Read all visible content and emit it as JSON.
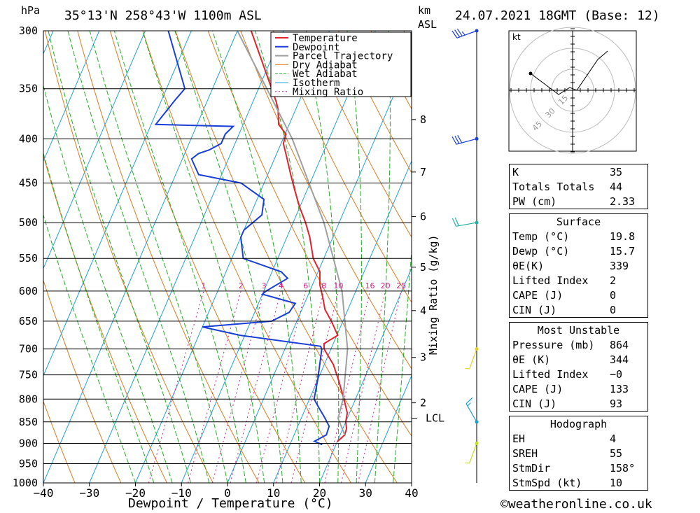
{
  "header": {
    "hpa": "hPa",
    "location": "35°13'N  258°43'W  1100m  ASL",
    "km": "km",
    "asl": "ASL",
    "datetime": "24.07.2021  18GMT  (Base: 12)"
  },
  "chart_data": {
    "type": "line",
    "title": "35°13'N  258°43'W  1100m  ASL",
    "xlabel": "Dewpoint / Temperature (°C)",
    "ylabel": "hPa",
    "xlim": [
      -40,
      40
    ],
    "ylim": [
      1000,
      300
    ],
    "skew_deg_per_log_p": 35,
    "x_ticks": [
      -40,
      -30,
      -20,
      -10,
      0,
      10,
      20,
      30,
      40
    ],
    "x_tick_labels": [
      "−40",
      "−30",
      "−20",
      "−10",
      "0",
      "10",
      "20",
      "30",
      "40"
    ],
    "pressure_levels": [
      300,
      350,
      400,
      450,
      500,
      550,
      600,
      650,
      700,
      750,
      800,
      850,
      900,
      950,
      1000
    ],
    "km_ticks": [
      {
        "km": "8",
        "p": 380
      },
      {
        "km": "7",
        "p": 437
      },
      {
        "km": "6",
        "p": 492
      },
      {
        "km": "5",
        "p": 563
      },
      {
        "km": "4",
        "p": 632
      },
      {
        "km": "3",
        "p": 716
      },
      {
        "km": "2",
        "p": 808
      }
    ],
    "lcl": {
      "label": "LCL",
      "p": 842
    },
    "mixing_ratio_label": "Mixing Ratio (g/kg)",
    "mixing_ratios": [
      1,
      2,
      3,
      4,
      6,
      8,
      10,
      16,
      20,
      25
    ],
    "mixing_ratio_labels": [
      "1",
      "2",
      "3",
      "4",
      "6",
      "8",
      "10",
      "16",
      "20",
      "25"
    ],
    "legend": [
      "Temperature",
      "Dewpoint",
      "Parcel Trajectory",
      "Dry Adiabat",
      "Wet Adiabat",
      "Isotherm",
      "Mixing Ratio"
    ],
    "colors": {
      "temperature": "#e8202a",
      "dewpoint": "#1a3fd6",
      "parcel": "#a0a0a0",
      "dry_adiabat": "#e07820",
      "wet_adiabat": "#20b020",
      "isotherm": "#20a0e0",
      "mixing": "#d0208a"
    },
    "series": [
      {
        "name": "Temperature",
        "points": [
          [
            896,
            20.0
          ],
          [
            880,
            21.0
          ],
          [
            865,
            20.8
          ],
          [
            850,
            20.0
          ],
          [
            830,
            19.5
          ],
          [
            800,
            17.5
          ],
          [
            760,
            14.5
          ],
          [
            730,
            12.0
          ],
          [
            700,
            8.5
          ],
          [
            690,
            8.0
          ],
          [
            675,
            10.2
          ],
          [
            650,
            7.5
          ],
          [
            630,
            5.0
          ],
          [
            610,
            3.4
          ],
          [
            590,
            1.6
          ],
          [
            570,
            0.4
          ],
          [
            550,
            -2.3
          ],
          [
            520,
            -5.0
          ],
          [
            500,
            -7.3
          ],
          [
            480,
            -10.0
          ],
          [
            460,
            -12.5
          ],
          [
            440,
            -15.0
          ],
          [
            420,
            -17.5
          ],
          [
            405,
            -19.5
          ],
          [
            395,
            -19.8
          ],
          [
            385,
            -22.3
          ],
          [
            370,
            -23.8
          ],
          [
            362,
            -25.0
          ],
          [
            300,
            -37.0
          ]
        ]
      },
      {
        "name": "Dewpoint",
        "points": [
          [
            903,
            17.0
          ],
          [
            895,
            15.0
          ],
          [
            880,
            17.0
          ],
          [
            860,
            16.8
          ],
          [
            840,
            15.0
          ],
          [
            820,
            13.0
          ],
          [
            800,
            11.0
          ],
          [
            760,
            10.0
          ],
          [
            700,
            8.0
          ],
          [
            695,
            7.5
          ],
          [
            675,
            -11.0
          ],
          [
            660,
            -20.0
          ],
          [
            650,
            -5.5
          ],
          [
            635,
            -2.5
          ],
          [
            620,
            -2.0
          ],
          [
            605,
            -10.0
          ],
          [
            600,
            -9.5
          ],
          [
            580,
            -6.0
          ],
          [
            570,
            -8.0
          ],
          [
            550,
            -17.5
          ],
          [
            520,
            -20.0
          ],
          [
            510,
            -20.0
          ],
          [
            490,
            -17.5
          ],
          [
            470,
            -18.5
          ],
          [
            450,
            -25.0
          ],
          [
            440,
            -35.0
          ],
          [
            422,
            -38.0
          ],
          [
            416,
            -37.0
          ],
          [
            412,
            -35.0
          ],
          [
            405,
            -33.0
          ],
          [
            395,
            -33.0
          ],
          [
            387,
            -32.0
          ],
          [
            385,
            -49.0
          ],
          [
            360,
            -47.0
          ],
          [
            350,
            -46.0
          ],
          [
            300,
            -55.0
          ]
        ]
      },
      {
        "name": "Parcel Trajectory",
        "points": [
          [
            880,
            21.0
          ],
          [
            842,
            18.0
          ],
          [
            800,
            17.3
          ],
          [
            700,
            13.6
          ],
          [
            600,
            7.0
          ],
          [
            500,
            -3.3
          ],
          [
            400,
            -18.0
          ],
          [
            300,
            -40.0
          ]
        ]
      }
    ]
  },
  "legend_labels": {
    "temperature": "Temperature",
    "dewpoint": "Dewpoint",
    "parcel": "Parcel Trajectory",
    "dry": "Dry Adiabat",
    "wet": "Wet Adiabat",
    "iso": "Isotherm",
    "mix": "Mixing Ratio"
  },
  "hodograph": {
    "unit": "kt",
    "ring_labels": [
      "15",
      "30",
      "45"
    ],
    "points": [
      [
        -30,
        12
      ],
      [
        -10,
        -3
      ],
      [
        -2,
        2
      ],
      [
        3,
        0
      ],
      [
        18,
        22
      ],
      [
        25,
        28
      ]
    ]
  },
  "wind_barbs": [
    {
      "p": 300,
      "dir_deg": 250,
      "speed_kt": 35,
      "color": "#1a3fd6"
    },
    {
      "p": 400,
      "dir_deg": 255,
      "speed_kt": 30,
      "color": "#1a3fd6"
    },
    {
      "p": 500,
      "dir_deg": 260,
      "speed_kt": 20,
      "color": "#20b0a0"
    },
    {
      "p": 700,
      "dir_deg": 200,
      "speed_kt": 5,
      "color": "#e0d020"
    },
    {
      "p": 850,
      "dir_deg": 330,
      "speed_kt": 15,
      "color": "#1aa0d6"
    },
    {
      "p": 900,
      "dir_deg": 200,
      "speed_kt": 5,
      "color": "#c0e020"
    }
  ],
  "indices": {
    "k_label": "K",
    "k": "35",
    "tt_label": "Totals Totals",
    "tt": "44",
    "pw_label": "PW (cm)",
    "pw": "2.33"
  },
  "surface": {
    "title": "Surface",
    "temp_label": "Temp (°C)",
    "temp": "19.8",
    "dewp_label": "Dewp (°C)",
    "dewp": "15.7",
    "theta_label": "θE(K)",
    "theta": "339",
    "li_label": "Lifted Index",
    "li": "2",
    "cape_label": "CAPE (J)",
    "cape": "0",
    "cin_label": "CIN (J)",
    "cin": "0"
  },
  "most_unstable": {
    "title": "Most Unstable",
    "pressure_label": "Pressure (mb)",
    "pressure": "864",
    "theta_label": "θE (K)",
    "theta": "344",
    "li_label": "Lifted Index",
    "li": "−0",
    "cape_label": "CAPE (J)",
    "cape": "133",
    "cin_label": "CIN (J)",
    "cin": "93"
  },
  "hodo_table": {
    "title": "Hodograph",
    "eh_label": "EH",
    "eh": "4",
    "sreh_label": "SREH",
    "sreh": "55",
    "stmdir_label": "StmDir",
    "stmdir": "158°",
    "stmspd_label": "StmSpd (kt)",
    "stmspd": "10"
  },
  "footer": {
    "copyright": "©weatheronline.co.uk"
  }
}
